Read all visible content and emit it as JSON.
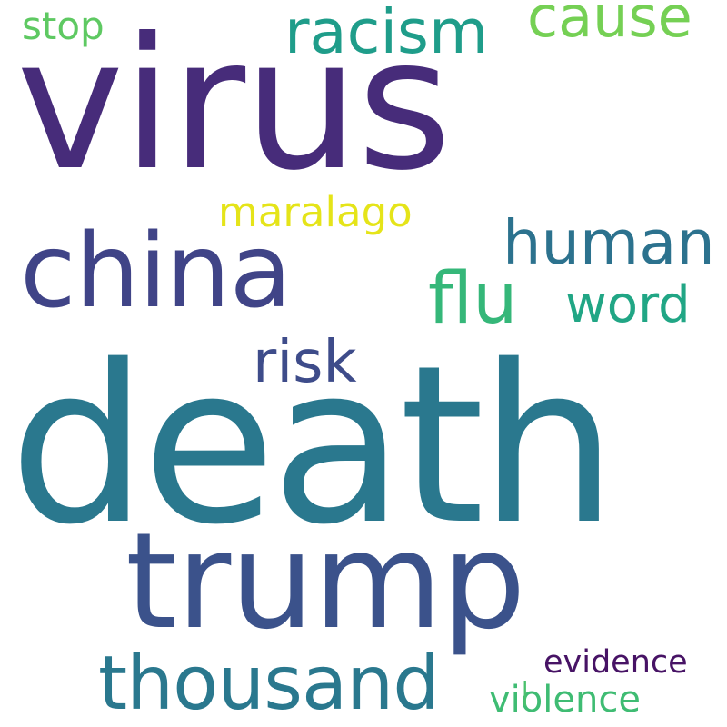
{
  "cloud": {
    "background": "#ffffff",
    "words": {
      "virus": {
        "text": "virus",
        "color": "#472c7a"
      },
      "death": {
        "text": "death",
        "color": "#2a788e"
      },
      "trump": {
        "text": "trump",
        "color": "#3b528b"
      },
      "china": {
        "text": "china",
        "color": "#404487"
      },
      "thousand": {
        "text": "thousand",
        "color": "#2a788e"
      },
      "racism": {
        "text": "racism",
        "color": "#1f9d8a"
      },
      "human": {
        "text": "human",
        "color": "#2c728e"
      },
      "cause": {
        "text": "cause",
        "color": "#75d054"
      },
      "flu": {
        "text": "flu",
        "color": "#35b779"
      },
      "word": {
        "text": "word",
        "color": "#21a685"
      },
      "risk": {
        "text": "risk",
        "color": "#3e4c8a"
      },
      "maralago": {
        "text": "maralago",
        "color": "#e5e419"
      },
      "stop": {
        "text": "stop",
        "color": "#5ec962"
      },
      "evidence": {
        "text": "evidence",
        "color": "#471365"
      },
      "violence": {
        "text": "violence",
        "color": "#3fbc73"
      },
      "mark": {
        "text": "|",
        "color": "#4ac16d"
      }
    }
  }
}
